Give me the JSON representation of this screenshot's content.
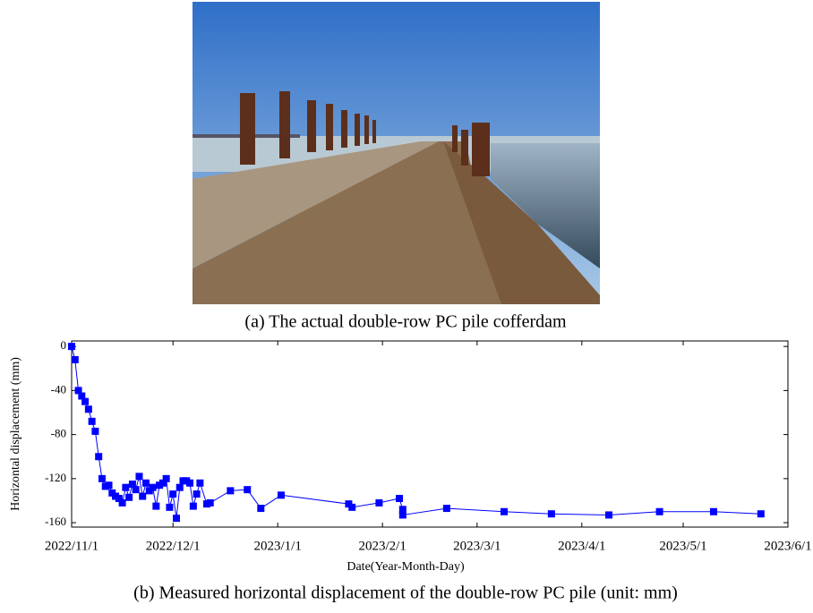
{
  "photo_caption": "(a) The actual double-row PC pile cofferdam",
  "chart_data": {
    "type": "line",
    "caption": "(b) Measured horizontal displacement of the double-row PC pile (unit: mm)",
    "xlabel": "Date(Year-Month-Day)",
    "ylabel": "Horizontal displacement (mm)",
    "x": [
      "2022/11/1",
      "2022/11/2",
      "2022/11/3",
      "2022/11/4",
      "2022/11/5",
      "2022/11/6",
      "2022/11/7",
      "2022/11/8",
      "2022/11/9",
      "2022/11/10",
      "2022/11/11",
      "2022/11/12",
      "2022/11/13",
      "2022/11/14",
      "2022/11/15",
      "2022/11/16",
      "2022/11/17",
      "2022/11/18",
      "2022/11/19",
      "2022/11/20",
      "2022/11/21",
      "2022/11/22",
      "2022/11/23",
      "2022/11/24",
      "2022/11/25",
      "2022/11/26",
      "2022/11/27",
      "2022/11/28",
      "2022/11/29",
      "2022/11/30",
      "2022/12/1",
      "2022/12/2",
      "2022/12/3",
      "2022/12/4",
      "2022/12/5",
      "2022/12/6",
      "2022/12/7",
      "2022/12/8",
      "2022/12/9",
      "2022/12/11",
      "2022/12/12",
      "2022/12/18",
      "2022/12/23",
      "2022/12/27",
      "2023/1/2",
      "2023/1/22",
      "2023/1/23",
      "2023/1/31",
      "2023/2/6",
      "2023/2/7",
      "2023/2/7",
      "2023/2/20",
      "2023/3/9",
      "2023/3/23",
      "2023/4/9",
      "2023/4/24",
      "2023/5/10",
      "2023/5/24"
    ],
    "series": [
      {
        "color": "#0000ff",
        "values": [
          0,
          -12,
          -40,
          -45,
          -50,
          -57,
          -68,
          -77,
          -100,
          -120,
          -127,
          -126,
          -133,
          -136,
          -138,
          -142,
          -128,
          -137,
          -125,
          -130,
          -118,
          -136,
          -124,
          -131,
          -128,
          -145,
          -126,
          -124,
          -120,
          -146,
          -134,
          -156,
          -128,
          -122,
          -122,
          -124,
          -145,
          -134,
          -124,
          -143,
          -142,
          -131,
          -130,
          -147,
          -135,
          -143,
          -146,
          -142,
          -138,
          -148,
          -153,
          -147,
          -150,
          -152,
          -153,
          -150,
          -150,
          -152
        ]
      }
    ],
    "xlim": [
      "2022/11/1",
      "2023/6/1"
    ],
    "xticks": [
      "2022/11/1",
      "2022/12/1",
      "2023/1/1",
      "2023/2/1",
      "2023/3/1",
      "2023/4/1",
      "2023/5/1",
      "2023/6/1"
    ],
    "ylim": [
      -164,
      5
    ],
    "yticks": [
      0,
      -40,
      -80,
      -120,
      -160
    ],
    "grid": false
  }
}
